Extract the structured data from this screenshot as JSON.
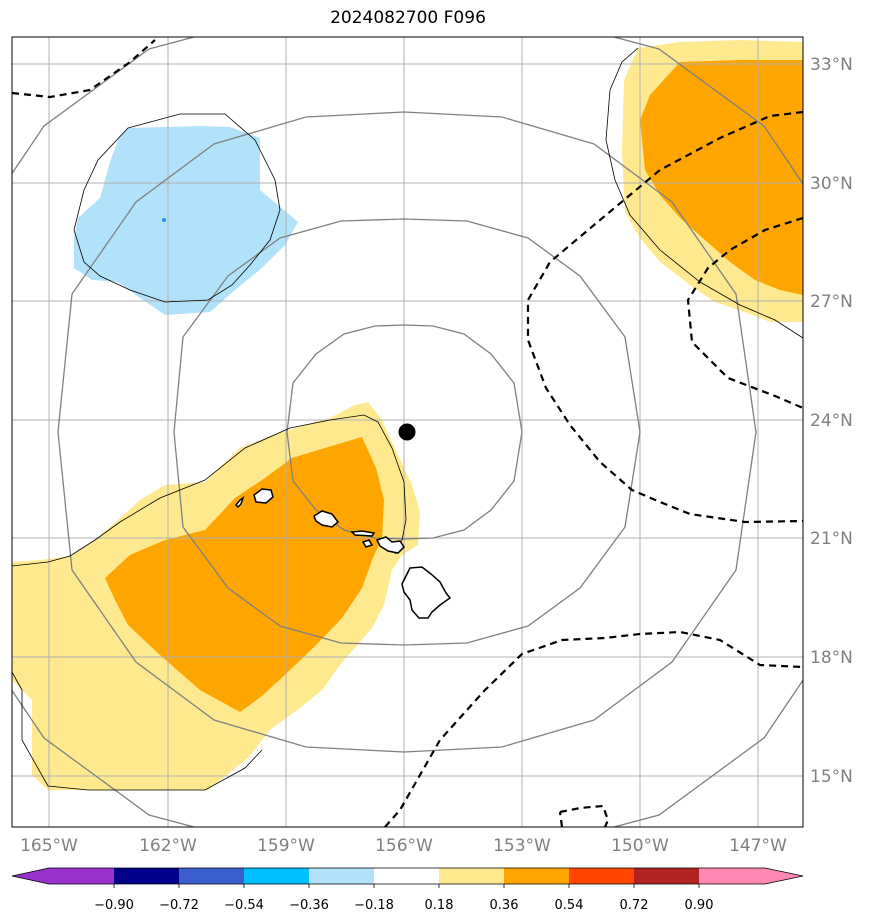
{
  "title": "2024082700 F096",
  "map": {
    "lon_labels": [
      "165°W",
      "162°W",
      "159°W",
      "156°W",
      "153°W",
      "150°W",
      "147°W"
    ],
    "lat_labels": [
      "33°N",
      "30°N",
      "27°N",
      "24°N",
      "21°N",
      "18°N",
      "15°N"
    ],
    "storm_center": {
      "lon": -156.0,
      "lat": 23.7
    }
  },
  "colorbar": {
    "ticks": [
      "−0.90",
      "−0.72",
      "−0.54",
      "−0.36",
      "−0.18",
      "0.18",
      "0.36",
      "0.54",
      "0.72",
      "0.90"
    ],
    "colors": [
      "#9932cc",
      "#00008b",
      "#3a5fcd",
      "#00bfff",
      "#b2e2fa",
      "#ffffff",
      "#ffe98f",
      "#ffa500",
      "#ff4500",
      "#b22222",
      "#ff87b4"
    ]
  },
  "colors": {
    "positive_low": "#ffe98f",
    "positive_mid": "#ffa500",
    "negative_low": "#b2e2fa",
    "gridline": "#b0b0b0",
    "range_rings": "#808080"
  }
}
